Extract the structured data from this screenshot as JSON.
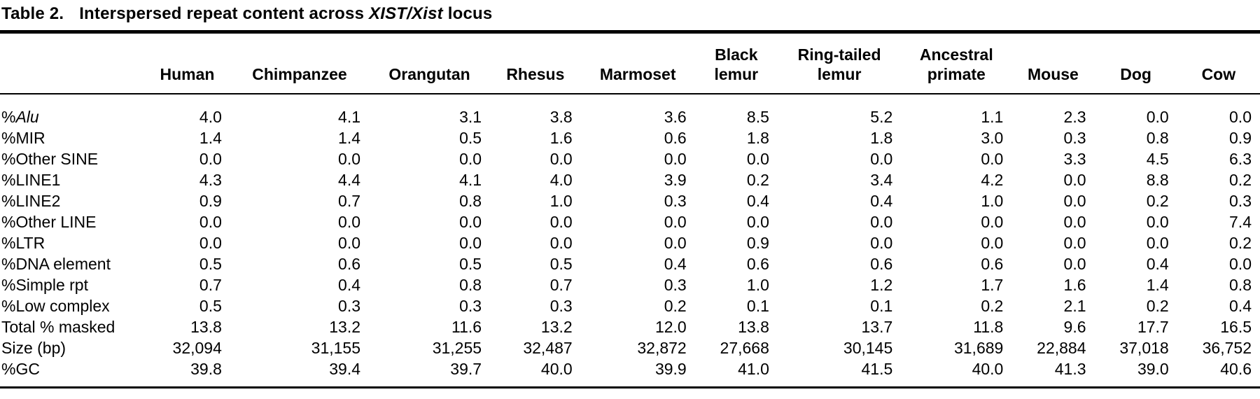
{
  "title": {
    "number": "Table 2.",
    "before": "Interspersed repeat content across ",
    "italic": "XIST/Xist",
    "after": " locus"
  },
  "table": {
    "columns": [
      "Human",
      "Chimpanzee",
      "Orangutan",
      "Rhesus",
      "Marmoset",
      "Black\nlemur",
      "Ring-tailed\nlemur",
      "Ancestral\nprimate",
      "Mouse",
      "Dog",
      "Cow"
    ],
    "rows": [
      {
        "label": [
          {
            "t": "%"
          },
          {
            "t": "Alu",
            "i": true
          }
        ],
        "values": [
          "4.0",
          "4.1",
          "3.1",
          "3.8",
          "3.6",
          "8.5",
          "5.2",
          "1.1",
          "2.3",
          "0.0",
          "0.0"
        ]
      },
      {
        "label": [
          {
            "t": "%MIR"
          }
        ],
        "values": [
          "1.4",
          "1.4",
          "0.5",
          "1.6",
          "0.6",
          "1.8",
          "1.8",
          "3.0",
          "0.3",
          "0.8",
          "0.9"
        ]
      },
      {
        "label": [
          {
            "t": "%Other SINE"
          }
        ],
        "values": [
          "0.0",
          "0.0",
          "0.0",
          "0.0",
          "0.0",
          "0.0",
          "0.0",
          "0.0",
          "3.3",
          "4.5",
          "6.3"
        ]
      },
      {
        "label": [
          {
            "t": "%LINE1"
          }
        ],
        "values": [
          "4.3",
          "4.4",
          "4.1",
          "4.0",
          "3.9",
          "0.2",
          "3.4",
          "4.2",
          "0.0",
          "8.8",
          "0.2"
        ]
      },
      {
        "label": [
          {
            "t": "%LINE2"
          }
        ],
        "values": [
          "0.9",
          "0.7",
          "0.8",
          "1.0",
          "0.3",
          "0.4",
          "0.4",
          "1.0",
          "0.0",
          "0.2",
          "0.3"
        ]
      },
      {
        "label": [
          {
            "t": "%Other LINE"
          }
        ],
        "values": [
          "0.0",
          "0.0",
          "0.0",
          "0.0",
          "0.0",
          "0.0",
          "0.0",
          "0.0",
          "0.0",
          "0.0",
          "7.4"
        ]
      },
      {
        "label": [
          {
            "t": "%LTR"
          }
        ],
        "values": [
          "0.0",
          "0.0",
          "0.0",
          "0.0",
          "0.0",
          "0.9",
          "0.0",
          "0.0",
          "0.0",
          "0.0",
          "0.2"
        ]
      },
      {
        "label": [
          {
            "t": "%DNA element"
          }
        ],
        "values": [
          "0.5",
          "0.6",
          "0.5",
          "0.5",
          "0.4",
          "0.6",
          "0.6",
          "0.6",
          "0.0",
          "0.4",
          "0.0"
        ]
      },
      {
        "label": [
          {
            "t": "%Simple rpt"
          }
        ],
        "values": [
          "0.7",
          "0.4",
          "0.8",
          "0.7",
          "0.3",
          "1.0",
          "1.2",
          "1.7",
          "1.6",
          "1.4",
          "0.8"
        ]
      },
      {
        "label": [
          {
            "t": "%Low complex"
          }
        ],
        "values": [
          "0.5",
          "0.3",
          "0.3",
          "0.3",
          "0.2",
          "0.1",
          "0.1",
          "0.2",
          "2.1",
          "0.2",
          "0.4"
        ]
      },
      {
        "label": [
          {
            "t": "Total % masked"
          }
        ],
        "values": [
          "13.8",
          "13.2",
          "11.6",
          "13.2",
          "12.0",
          "13.8",
          "13.7",
          "11.8",
          "9.6",
          "17.7",
          "16.5"
        ]
      },
      {
        "label": [
          {
            "t": "Size (bp)"
          }
        ],
        "values": [
          "32,094",
          "31,155",
          "31,255",
          "32,487",
          "32,872",
          "27,668",
          "30,145",
          "31,689",
          "22,884",
          "37,018",
          "36,752"
        ]
      },
      {
        "label": [
          {
            "t": "%GC"
          }
        ],
        "values": [
          "39.8",
          "39.4",
          "39.7",
          "40.0",
          "39.9",
          "41.0",
          "41.5",
          "40.0",
          "41.3",
          "39.0",
          "40.6"
        ]
      }
    ]
  }
}
